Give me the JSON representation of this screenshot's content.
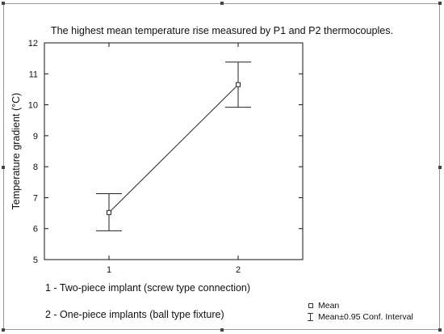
{
  "chart_data": {
    "type": "line",
    "title": "The highest mean temperature rise measured by P1 and P2 thermocouples.",
    "ylabel": "Temperature gradient (°C)",
    "xlabel": "",
    "x": [
      1,
      2
    ],
    "x_tick_labels": [
      "1",
      "2"
    ],
    "ylim": [
      5,
      12
    ],
    "y_ticks": [
      5,
      6,
      7,
      8,
      9,
      10,
      11,
      12
    ],
    "grid": false,
    "series": [
      {
        "name": "Mean",
        "values": [
          6.52,
          10.65
        ],
        "ci_lower": [
          5.93,
          9.92
        ],
        "ci_upper": [
          7.13,
          11.38
        ]
      }
    ],
    "legend": {
      "placement": "bottom-right",
      "entries": [
        "Mean",
        "Mean±0.95 Conf. Interval"
      ]
    },
    "annotations": [
      "1 - Two-piece implant (screw type connection)",
      "2 - One-piece implants (ball type fixture)"
    ]
  }
}
